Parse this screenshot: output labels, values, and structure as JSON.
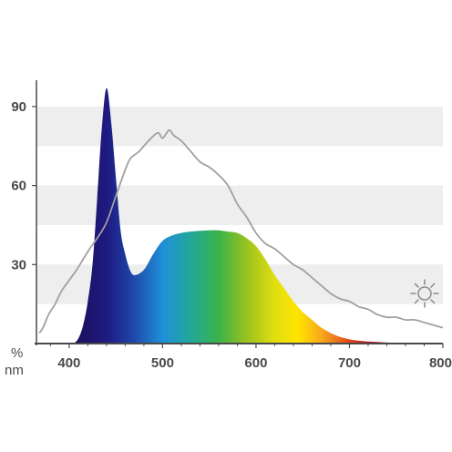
{
  "chart_data": {
    "type": "area",
    "title": "",
    "ylabel": "%",
    "xlabel": "nm",
    "xlim": [
      365,
      800
    ],
    "ylim": [
      0,
      100
    ],
    "grid": "horizontal bands",
    "x_ticks": [
      400,
      500,
      600,
      700,
      800
    ],
    "y_ticks": [
      30,
      60,
      90
    ],
    "icon": "sun-icon",
    "colors": {
      "axis": "#4a4a4a",
      "band": "#eeeeee",
      "reference_line": "#a0a0a0",
      "spectrum_stops": [
        {
          "nm": 410,
          "color": "#1c1160"
        },
        {
          "nm": 440,
          "color": "#1e1a80"
        },
        {
          "nm": 465,
          "color": "#1f3fa4"
        },
        {
          "nm": 500,
          "color": "#1f8fd8"
        },
        {
          "nm": 530,
          "color": "#22a89a"
        },
        {
          "nm": 560,
          "color": "#3ab24a"
        },
        {
          "nm": 590,
          "color": "#9bc21f"
        },
        {
          "nm": 620,
          "color": "#e0df10"
        },
        {
          "nm": 645,
          "color": "#ffe400"
        },
        {
          "nm": 670,
          "color": "#f7a91b"
        },
        {
          "nm": 700,
          "color": "#e0451c"
        },
        {
          "nm": 720,
          "color": "#c3121c"
        },
        {
          "nm": 760,
          "color": "#8a0d12"
        },
        {
          "nm": 800,
          "color": "#5a0a0a"
        }
      ]
    },
    "series": [
      {
        "kind": "filled",
        "x": [
          405,
          410,
          415,
          420,
          425,
          430,
          435,
          440,
          445,
          450,
          455,
          460,
          465,
          470,
          480,
          490,
          500,
          510,
          520,
          530,
          540,
          550,
          560,
          570,
          580,
          590,
          600,
          610,
          620,
          630,
          640,
          650,
          660,
          670,
          680,
          690,
          700,
          710,
          720,
          730,
          740,
          760,
          780,
          800
        ],
        "y": [
          0,
          2,
          7,
          16,
          30,
          55,
          82,
          97,
          84,
          63,
          43,
          34,
          28,
          26,
          28,
          34,
          39,
          41,
          42,
          42.5,
          42.8,
          43,
          43,
          42.5,
          42,
          40,
          37,
          32,
          26,
          21,
          16,
          12,
          9,
          6,
          4,
          2.5,
          1.6,
          1.1,
          0.8,
          0.6,
          0.4,
          0.3,
          0.2,
          0.1
        ]
      },
      {
        "kind": "line",
        "x": [
          368,
          372,
          378,
          385,
          392,
          400,
          408,
          415,
          422,
          430,
          440,
          450,
          458,
          465,
          475,
          485,
          495,
          500,
          507,
          512,
          520,
          530,
          540,
          550,
          560,
          570,
          580,
          590,
          600,
          610,
          620,
          630,
          640,
          650,
          660,
          670,
          680,
          690,
          700,
          710,
          720,
          730,
          740,
          750,
          760,
          770,
          780,
          790,
          800
        ],
        "y": [
          4,
          6,
          11,
          15,
          20,
          24,
          28,
          32,
          36,
          40,
          46,
          56,
          64,
          70,
          73,
          77,
          80,
          78,
          81,
          79,
          77,
          73,
          69,
          67,
          64,
          60,
          53,
          48,
          42,
          38,
          36,
          33,
          30,
          28,
          25,
          22,
          19,
          17,
          16,
          14,
          13,
          11,
          10,
          10,
          9,
          9,
          8,
          7,
          6
        ]
      }
    ]
  }
}
